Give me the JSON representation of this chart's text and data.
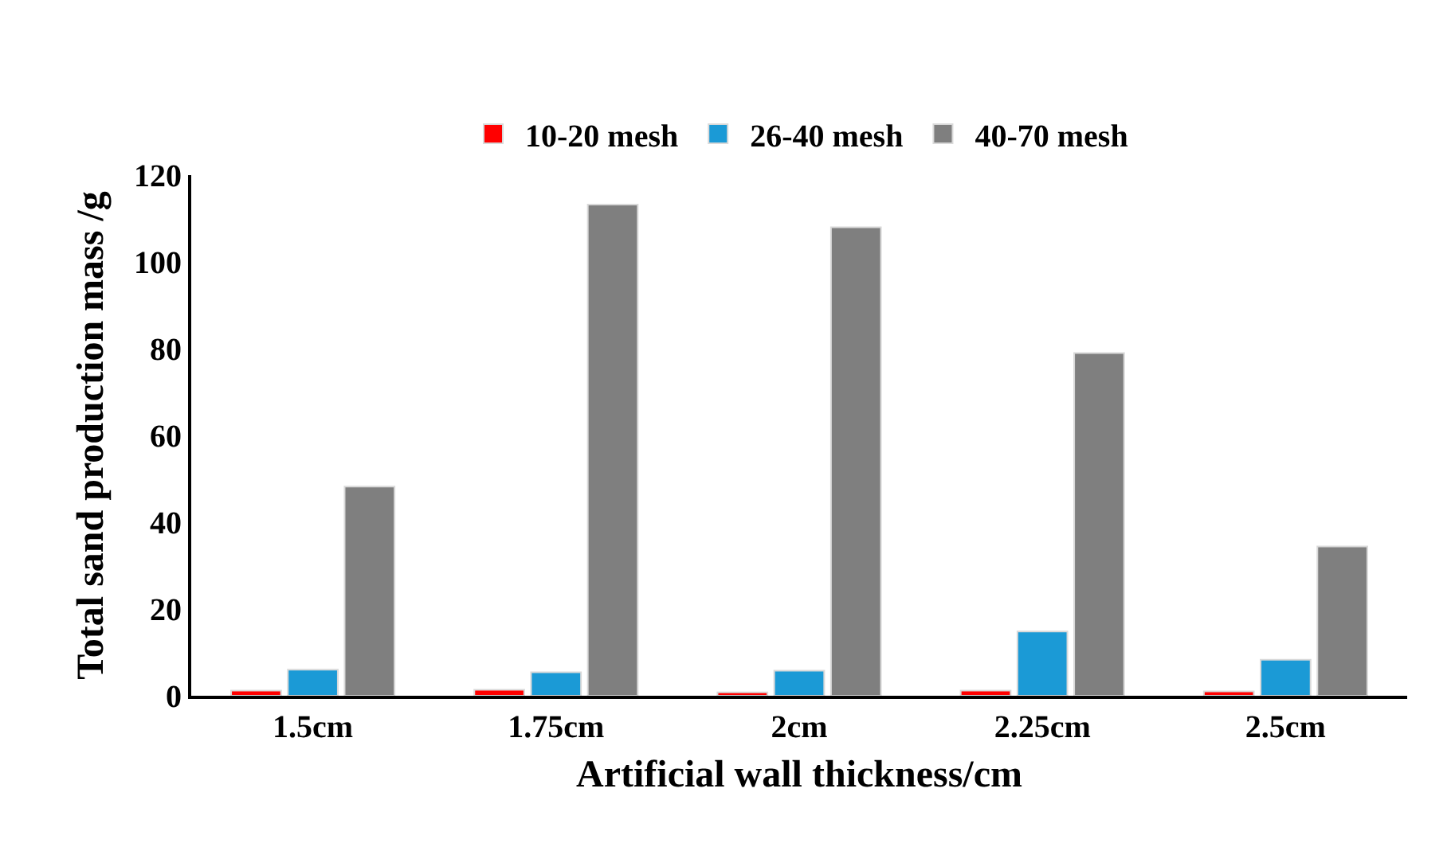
{
  "chart_data": {
    "type": "bar",
    "xlabel": "Artificial wall thickness/cm",
    "ylabel": "Total sand production mass /g",
    "categories": [
      "1.5cm",
      "1.75cm",
      "2cm",
      "2.25cm",
      "2.5cm"
    ],
    "series": [
      {
        "name": "10-20 mesh",
        "color": "#ff0000",
        "values": [
          1.2,
          1.4,
          0.8,
          1.2,
          1.0
        ]
      },
      {
        "name": "26-40 mesh",
        "color": "#1b9ad6",
        "values": [
          6.0,
          5.4,
          5.8,
          14.8,
          8.3
        ]
      },
      {
        "name": "40-70 mesh",
        "color": "#7f7f7f",
        "values": [
          48.2,
          113.2,
          108,
          79,
          34.4
        ]
      }
    ],
    "ylim": [
      0,
      120
    ],
    "yticks": [
      0,
      20,
      40,
      60,
      80,
      100,
      120
    ],
    "grid": false,
    "legend": "top"
  }
}
